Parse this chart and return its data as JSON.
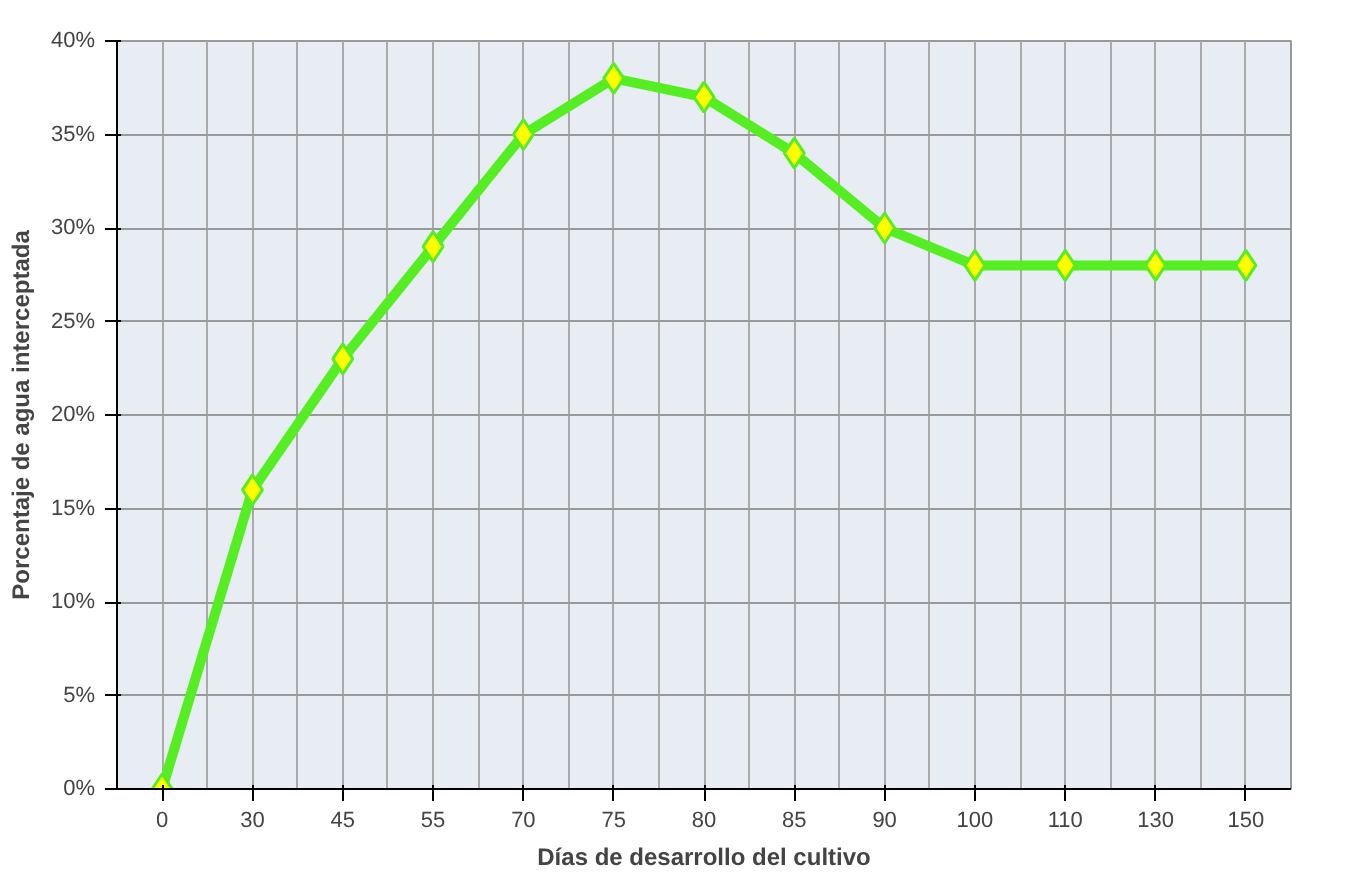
{
  "chart_data": {
    "type": "line",
    "xlabel": "Días de desarrollo del cultivo",
    "ylabel": "Porcentaje de agua interceptada",
    "categories": [
      "0",
      "30",
      "45",
      "55",
      "70",
      "75",
      "80",
      "85",
      "90",
      "100",
      "110",
      "130",
      "150"
    ],
    "series": [
      {
        "color": "#55ee22",
        "values": [
          0,
          16,
          23,
          29,
          35,
          38,
          37,
          34,
          30,
          28,
          28,
          28,
          28
        ]
      }
    ],
    "ylim": [
      0,
      40
    ],
    "yticks": [
      {
        "value": 0,
        "label": "0%"
      },
      {
        "value": 5,
        "label": "5%"
      },
      {
        "value": 10,
        "label": "10%"
      },
      {
        "value": 15,
        "label": "15%"
      },
      {
        "value": 20,
        "label": "20%"
      },
      {
        "value": 25,
        "label": "25%"
      },
      {
        "value": 30,
        "label": "30%"
      },
      {
        "value": 35,
        "label": "35%"
      },
      {
        "value": 40,
        "label": "40%"
      }
    ],
    "grid": true,
    "marker": "diamond",
    "line_style": "solid"
  }
}
